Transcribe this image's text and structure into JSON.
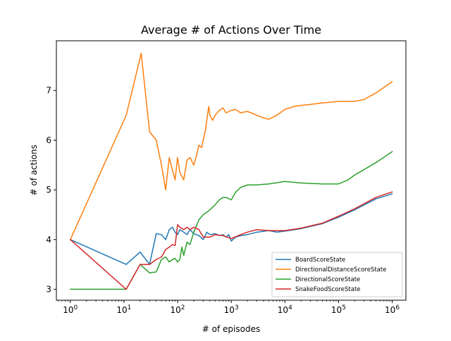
{
  "chart_data": {
    "type": "line",
    "title": "Average # of Actions Over Time",
    "xlabel": "# of episodes",
    "ylabel": "# of actions",
    "xscale": "log",
    "xlim": [
      0.55,
      1800000
    ],
    "ylim": [
      2.78,
      8.0
    ],
    "x_ticks": [
      {
        "value": 1,
        "base": "10",
        "exp": "0"
      },
      {
        "value": 10,
        "base": "10",
        "exp": "1"
      },
      {
        "value": 100,
        "base": "10",
        "exp": "2"
      },
      {
        "value": 1000,
        "base": "10",
        "exp": "3"
      },
      {
        "value": 10000,
        "base": "10",
        "exp": "4"
      },
      {
        "value": 100000,
        "base": "10",
        "exp": "5"
      },
      {
        "value": 1000000,
        "base": "10",
        "exp": "6"
      }
    ],
    "y_ticks": [
      {
        "value": 3,
        "label": "3"
      },
      {
        "value": 4,
        "label": "4"
      },
      {
        "value": 5,
        "label": "5"
      },
      {
        "value": 6,
        "label": "6"
      },
      {
        "value": 7,
        "label": "7"
      }
    ],
    "grid": false,
    "legend_position": "lower-right",
    "series": [
      {
        "name": "BoardScoreState",
        "color": "#1f77b4",
        "points": [
          [
            1,
            4.0
          ],
          [
            11,
            3.5
          ],
          [
            20,
            3.75
          ],
          [
            30,
            3.5
          ],
          [
            40,
            4.12
          ],
          [
            50,
            4.1
          ],
          [
            60,
            4.0
          ],
          [
            70,
            4.2
          ],
          [
            80,
            4.25
          ],
          [
            90,
            4.15
          ],
          [
            100,
            4.1
          ],
          [
            110,
            4.2
          ],
          [
            130,
            4.15
          ],
          [
            150,
            4.1
          ],
          [
            170,
            4.2
          ],
          [
            200,
            4.12
          ],
          [
            250,
            4.08
          ],
          [
            300,
            4.0
          ],
          [
            350,
            4.15
          ],
          [
            400,
            4.1
          ],
          [
            500,
            4.12
          ],
          [
            600,
            4.08
          ],
          [
            700,
            4.1
          ],
          [
            800,
            4.05
          ],
          [
            900,
            4.1
          ],
          [
            1000,
            3.97
          ],
          [
            1200,
            4.05
          ],
          [
            1500,
            4.08
          ],
          [
            2000,
            4.1
          ],
          [
            3000,
            4.15
          ],
          [
            5000,
            4.18
          ],
          [
            7000,
            4.15
          ],
          [
            10000,
            4.17
          ],
          [
            20000,
            4.22
          ],
          [
            50000,
            4.32
          ],
          [
            100000,
            4.45
          ],
          [
            200000,
            4.6
          ],
          [
            500000,
            4.82
          ],
          [
            1000000,
            4.92
          ]
        ]
      },
      {
        "name": "DirectionalDistanceScoreState",
        "color": "#ff7f0e",
        "points": [
          [
            1,
            4.0
          ],
          [
            11,
            6.5
          ],
          [
            21,
            7.75
          ],
          [
            30,
            6.17
          ],
          [
            40,
            6.0
          ],
          [
            50,
            5.5
          ],
          [
            60,
            5.0
          ],
          [
            70,
            5.65
          ],
          [
            80,
            5.4
          ],
          [
            90,
            5.2
          ],
          [
            100,
            5.65
          ],
          [
            110,
            5.35
          ],
          [
            130,
            5.2
          ],
          [
            150,
            5.6
          ],
          [
            170,
            5.65
          ],
          [
            200,
            5.5
          ],
          [
            220,
            5.65
          ],
          [
            250,
            5.9
          ],
          [
            280,
            5.85
          ],
          [
            300,
            6.0
          ],
          [
            330,
            6.2
          ],
          [
            350,
            6.4
          ],
          [
            380,
            6.68
          ],
          [
            400,
            6.5
          ],
          [
            450,
            6.4
          ],
          [
            500,
            6.5
          ],
          [
            600,
            6.6
          ],
          [
            700,
            6.65
          ],
          [
            800,
            6.55
          ],
          [
            1000,
            6.6
          ],
          [
            1200,
            6.62
          ],
          [
            1500,
            6.55
          ],
          [
            2000,
            6.58
          ],
          [
            3000,
            6.5
          ],
          [
            4000,
            6.45
          ],
          [
            5000,
            6.42
          ],
          [
            7000,
            6.5
          ],
          [
            10000,
            6.62
          ],
          [
            15000,
            6.68
          ],
          [
            20000,
            6.7
          ],
          [
            30000,
            6.72
          ],
          [
            50000,
            6.75
          ],
          [
            100000,
            6.78
          ],
          [
            200000,
            6.78
          ],
          [
            300000,
            6.82
          ],
          [
            500000,
            6.95
          ],
          [
            1000000,
            7.18
          ]
        ]
      },
      {
        "name": "DirectionalScoreState",
        "color": "#2ca02c",
        "points": [
          [
            1,
            3.0
          ],
          [
            11,
            3.0
          ],
          [
            20,
            3.5
          ],
          [
            30,
            3.33
          ],
          [
            40,
            3.35
          ],
          [
            50,
            3.6
          ],
          [
            60,
            3.65
          ],
          [
            70,
            3.55
          ],
          [
            80,
            3.6
          ],
          [
            90,
            3.62
          ],
          [
            100,
            3.55
          ],
          [
            110,
            3.6
          ],
          [
            120,
            3.85
          ],
          [
            130,
            3.68
          ],
          [
            150,
            3.95
          ],
          [
            170,
            3.9
          ],
          [
            200,
            4.15
          ],
          [
            250,
            4.4
          ],
          [
            300,
            4.5
          ],
          [
            350,
            4.55
          ],
          [
            400,
            4.6
          ],
          [
            500,
            4.7
          ],
          [
            600,
            4.8
          ],
          [
            700,
            4.85
          ],
          [
            800,
            4.85
          ],
          [
            1000,
            4.8
          ],
          [
            1200,
            4.95
          ],
          [
            1500,
            5.05
          ],
          [
            2000,
            5.1
          ],
          [
            3000,
            5.1
          ],
          [
            5000,
            5.12
          ],
          [
            10000,
            5.17
          ],
          [
            20000,
            5.14
          ],
          [
            50000,
            5.12
          ],
          [
            100000,
            5.12
          ],
          [
            150000,
            5.2
          ],
          [
            200000,
            5.3
          ],
          [
            500000,
            5.55
          ],
          [
            1000000,
            5.77
          ]
        ]
      },
      {
        "name": "SnakeFoodScoreState",
        "color": "#d62728",
        "points": [
          [
            1,
            4.0
          ],
          [
            11,
            3.0
          ],
          [
            20,
            3.5
          ],
          [
            30,
            3.5
          ],
          [
            40,
            3.6
          ],
          [
            50,
            3.65
          ],
          [
            60,
            3.8
          ],
          [
            70,
            3.85
          ],
          [
            80,
            3.9
          ],
          [
            90,
            3.88
          ],
          [
            100,
            4.3
          ],
          [
            110,
            4.25
          ],
          [
            130,
            4.2
          ],
          [
            150,
            4.25
          ],
          [
            170,
            4.2
          ],
          [
            200,
            4.25
          ],
          [
            250,
            4.2
          ],
          [
            300,
            4.05
          ],
          [
            400,
            4.05
          ],
          [
            500,
            4.1
          ],
          [
            700,
            4.08
          ],
          [
            1000,
            4.02
          ],
          [
            1500,
            4.1
          ],
          [
            2000,
            4.15
          ],
          [
            3000,
            4.2
          ],
          [
            5000,
            4.18
          ],
          [
            10000,
            4.18
          ],
          [
            20000,
            4.23
          ],
          [
            50000,
            4.33
          ],
          [
            100000,
            4.47
          ],
          [
            200000,
            4.62
          ],
          [
            500000,
            4.85
          ],
          [
            1000000,
            4.96
          ]
        ]
      }
    ]
  }
}
